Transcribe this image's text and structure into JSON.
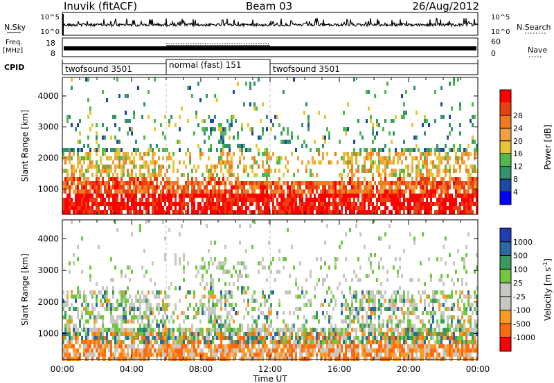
{
  "header": {
    "station": "Inuvik (fitACF)",
    "beam": "Beam 03",
    "date": "26/Aug/2012"
  },
  "strip_labels": {
    "nsky": "N.Sky",
    "freq_line1": "Freq.",
    "freq_line2": "[MHz]",
    "cpid": "CPID",
    "nsearch": "N.Search",
    "nave": "Nave"
  },
  "colors": {
    "power": [
      "#0000ff",
      "#1f49a6",
      "#33946b",
      "#4fb94e",
      "#e8c534",
      "#f0a040",
      "#f07a20",
      "#e84010",
      "#ff0000"
    ],
    "velocity": [
      "#ff0000",
      "#ff6a10",
      "#ff9a20",
      "#c8c8c0",
      "#c8c8c0",
      "#70c840",
      "#3a9a60",
      "#2a6aa0",
      "#1f3fb0"
    ]
  },
  "chart_data": [
    {
      "type": "line",
      "panel": "N.Sky / N.Search",
      "y_left_ticks": [
        "10^5",
        "10^0"
      ],
      "y_right_ticks": [
        "10^5",
        "10^0"
      ]
    },
    {
      "type": "line",
      "panel": "Freq. / Nave",
      "y_left_ticks": [
        "18",
        "8"
      ],
      "y_right_ticks": [
        "60",
        "0"
      ]
    },
    {
      "type": "table",
      "panel": "CPID",
      "segments": [
        {
          "start_hour": 0,
          "end_hour": 6,
          "label": "twofsound 3501"
        },
        {
          "start_hour": 6,
          "end_hour": 12,
          "label": "normal (fast) 151"
        },
        {
          "start_hour": 12,
          "end_hour": 24,
          "label": "twofsound 3501"
        }
      ]
    },
    {
      "type": "heatmap",
      "panel": "Power",
      "ylabel": "Slant Range [km]",
      "ylim": [
        180,
        4600
      ],
      "yticks": [
        "1000",
        "2000",
        "3000",
        "4000"
      ],
      "xlim": [
        0,
        24
      ],
      "colorbar_label": "Power [dB]",
      "colorbar_ticks": [
        "4",
        "8",
        "12",
        "16",
        "20",
        "24",
        "28"
      ],
      "colorbar_range": [
        0,
        32
      ]
    },
    {
      "type": "heatmap",
      "panel": "Velocity",
      "ylabel": "Slant Range [km]",
      "ylim": [
        180,
        4600
      ],
      "yticks": [
        "1000",
        "2000",
        "3000",
        "4000"
      ],
      "xlim": [
        0,
        24
      ],
      "xticks": [
        "00:00",
        "04:00",
        "08:00",
        "12:00",
        "16:00",
        "20:00",
        "00:00"
      ],
      "xlabel": "Time UT",
      "colorbar_label": "Velocity [m s",
      "colorbar_label_sup": "-1",
      "colorbar_label_end": "]",
      "colorbar_ticks": [
        "-1000",
        "-500",
        "-100",
        "-25",
        "25",
        "100",
        "500",
        "1000"
      ]
    }
  ]
}
